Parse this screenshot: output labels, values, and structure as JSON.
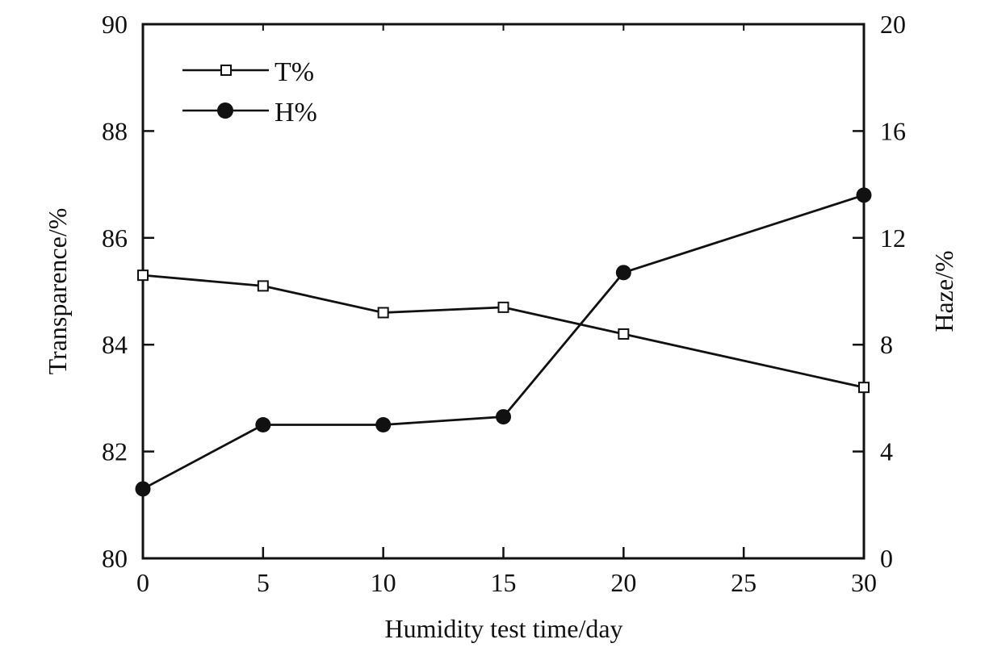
{
  "chart_data": {
    "type": "line",
    "title": "",
    "xlabel": "Humidity test time/day",
    "ylabel": "Transparence/%",
    "y2label": "Haze/%",
    "xlim": [
      0,
      30
    ],
    "ylim": [
      80,
      90
    ],
    "y2lim": [
      0,
      20
    ],
    "xticks": [
      0,
      5,
      10,
      15,
      20,
      25,
      30
    ],
    "yticks": [
      80,
      82,
      84,
      86,
      88,
      90
    ],
    "y2ticks": [
      0,
      4,
      8,
      12,
      16,
      20
    ],
    "grid": false,
    "legend": "top-left",
    "series": [
      {
        "name": "T%",
        "axis": "left",
        "marker": "open-square",
        "color": "#111111",
        "x": [
          0,
          5,
          10,
          15,
          20,
          30
        ],
        "values": [
          85.3,
          85.1,
          84.6,
          84.7,
          84.2,
          83.2
        ]
      },
      {
        "name": "H%",
        "axis": "right",
        "marker": "filled-circle",
        "color": "#111111",
        "x": [
          0,
          5,
          10,
          15,
          20,
          30
        ],
        "values": [
          2.6,
          5.0,
          5.0,
          5.3,
          10.7,
          13.6
        ]
      }
    ]
  }
}
